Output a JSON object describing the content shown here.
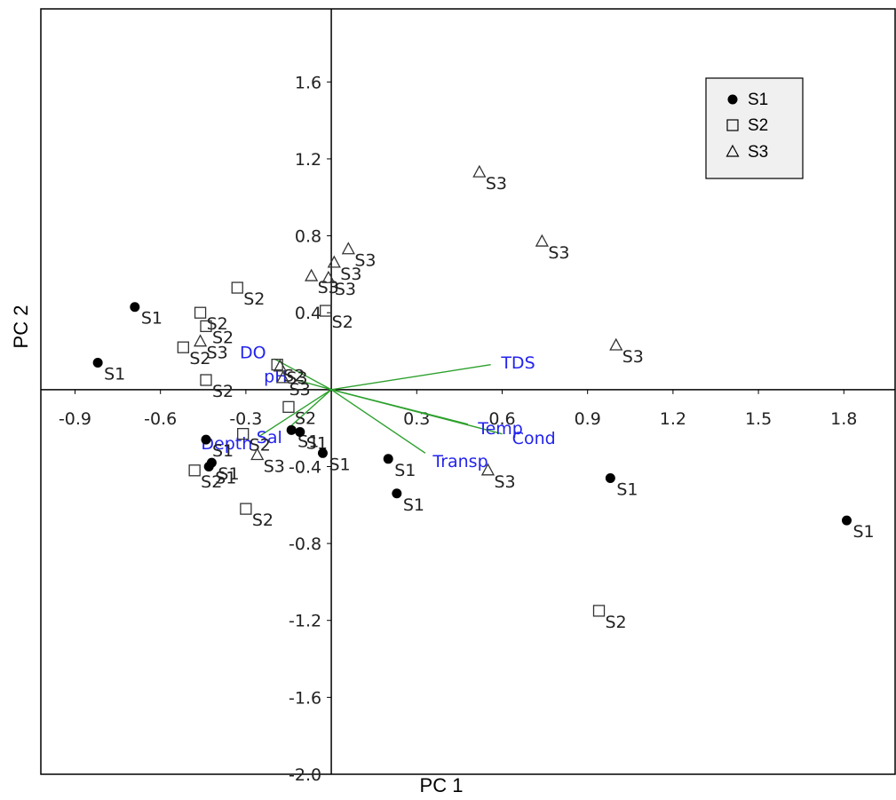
{
  "chart_data": {
    "type": "scatter",
    "title": "",
    "xlabel": "PC 1",
    "ylabel": "PC 2",
    "xlim": [
      -1.02,
      1.98
    ],
    "ylim": [
      -2.0,
      1.98
    ],
    "grid": false,
    "legend_position": "top-right",
    "x_ticks": [
      "-0.9",
      "-0.6",
      "-0.3",
      "0.3",
      "0.6",
      "0.9",
      "1.2",
      "1.5",
      "1.8"
    ],
    "x_tick_values": [
      -0.9,
      -0.6,
      -0.3,
      0.3,
      0.6,
      0.9,
      1.2,
      1.5,
      1.8
    ],
    "y_ticks": [
      "1.6",
      "1.2",
      "0.8",
      "0.4",
      "-0.4",
      "-0.8",
      "-1.2",
      "-1.6",
      "-2.0"
    ],
    "y_tick_values": [
      1.6,
      1.2,
      0.8,
      0.4,
      -0.4,
      -0.8,
      -1.2,
      -1.6,
      -2.0
    ],
    "series": [
      {
        "name": "S1",
        "marker": "filled-circle",
        "points": [
          {
            "x": -0.82,
            "y": 0.14
          },
          {
            "x": -0.69,
            "y": 0.43
          },
          {
            "x": -0.44,
            "y": -0.26
          },
          {
            "x": -0.42,
            "y": -0.38
          },
          {
            "x": -0.43,
            "y": -0.4
          },
          {
            "x": -0.14,
            "y": -0.21
          },
          {
            "x": -0.11,
            "y": -0.22
          },
          {
            "x": -0.03,
            "y": -0.33
          },
          {
            "x": 0.2,
            "y": -0.36
          },
          {
            "x": 0.23,
            "y": -0.54
          },
          {
            "x": 0.98,
            "y": -0.46
          },
          {
            "x": 1.81,
            "y": -0.68
          }
        ]
      },
      {
        "name": "S2",
        "marker": "open-square",
        "points": [
          {
            "x": -0.52,
            "y": 0.22
          },
          {
            "x": -0.46,
            "y": 0.4
          },
          {
            "x": -0.44,
            "y": 0.33
          },
          {
            "x": -0.44,
            "y": 0.05
          },
          {
            "x": -0.33,
            "y": 0.53
          },
          {
            "x": -0.31,
            "y": -0.23
          },
          {
            "x": -0.48,
            "y": -0.42
          },
          {
            "x": -0.3,
            "y": -0.62
          },
          {
            "x": -0.19,
            "y": 0.13
          },
          {
            "x": -0.15,
            "y": -0.09
          },
          {
            "x": -0.02,
            "y": 0.41
          },
          {
            "x": 0.94,
            "y": -1.15
          }
        ]
      },
      {
        "name": "S3",
        "marker": "open-triangle",
        "points": [
          {
            "x": -0.46,
            "y": 0.25
          },
          {
            "x": -0.18,
            "y": 0.12
          },
          {
            "x": -0.17,
            "y": 0.06
          },
          {
            "x": -0.26,
            "y": -0.34
          },
          {
            "x": -0.07,
            "y": 0.59
          },
          {
            "x": -0.01,
            "y": 0.58
          },
          {
            "x": 0.01,
            "y": 0.66
          },
          {
            "x": 0.06,
            "y": 0.73
          },
          {
            "x": 0.52,
            "y": 1.13
          },
          {
            "x": 0.74,
            "y": 0.77
          },
          {
            "x": 1.0,
            "y": 0.23
          },
          {
            "x": 0.55,
            "y": -0.42
          }
        ]
      }
    ],
    "vectors": [
      {
        "name": "TDS",
        "x": 0.56,
        "y": 0.13
      },
      {
        "name": "Cond",
        "x": 0.6,
        "y": -0.23
      },
      {
        "name": "Temp",
        "x": 0.48,
        "y": -0.18
      },
      {
        "name": "Transp",
        "x": 0.33,
        "y": -0.33
      },
      {
        "name": "DO",
        "x": -0.2,
        "y": 0.16
      },
      {
        "name": "pH",
        "x": -0.12,
        "y": 0.05
      },
      {
        "name": "Depth",
        "x": -0.25,
        "y": -0.24
      },
      {
        "name": "Sal",
        "x": -0.15,
        "y": -0.2
      }
    ],
    "colors": {
      "points": "#000000",
      "vectors": "#2ca02c",
      "vector_labels": "#2323ee",
      "axes": "#000000"
    }
  },
  "legend": {
    "entries": [
      {
        "symbol": "●",
        "label": "S1"
      },
      {
        "symbol": "□",
        "label": "S2"
      },
      {
        "symbol": "Δ",
        "label": "S3"
      }
    ]
  }
}
